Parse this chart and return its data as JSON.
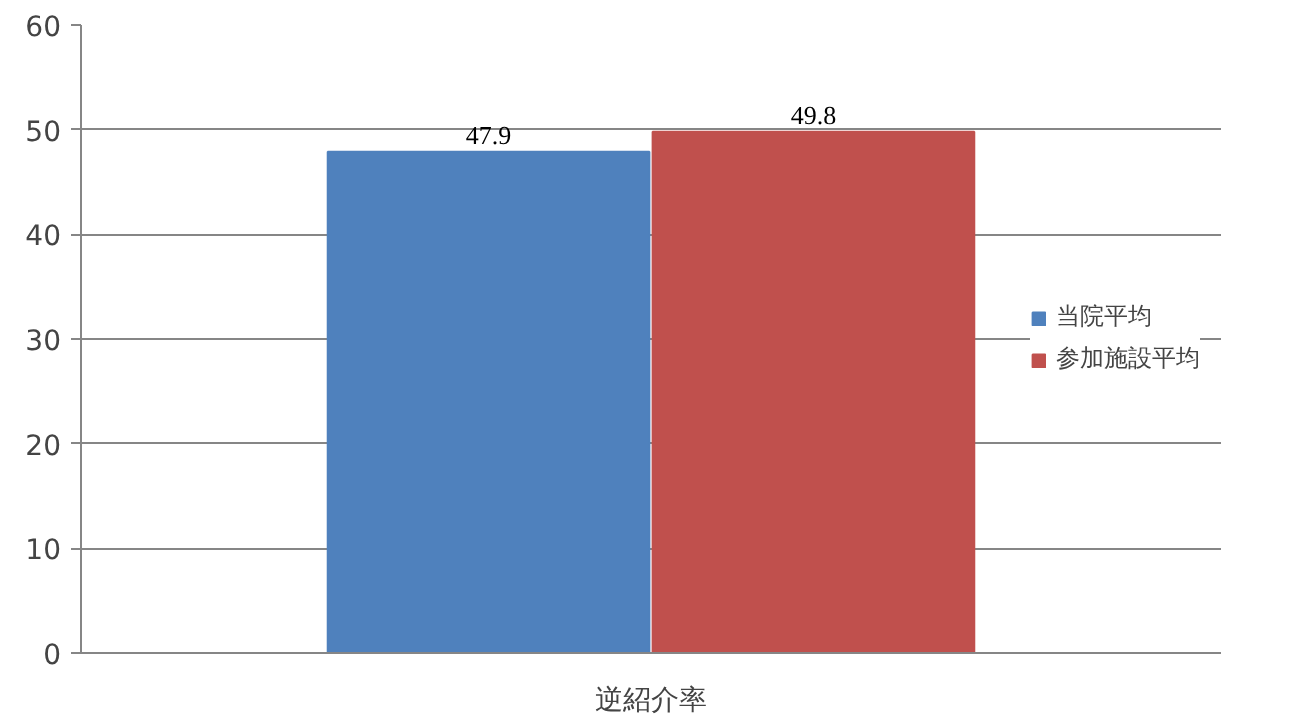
{
  "chart_data": {
    "type": "bar",
    "categories": [
      "逆紹介率"
    ],
    "series": [
      {
        "name": "当院平均",
        "color": "#4f81bd",
        "values": [
          47.9
        ]
      },
      {
        "name": "参加施設平均",
        "color": "#c0504d",
        "values": [
          49.8
        ]
      }
    ],
    "ylim": [
      0,
      60
    ],
    "yticks": [
      0,
      10,
      20,
      30,
      40,
      50,
      60
    ],
    "grid": "y",
    "legend": "right",
    "data_labels": true
  }
}
